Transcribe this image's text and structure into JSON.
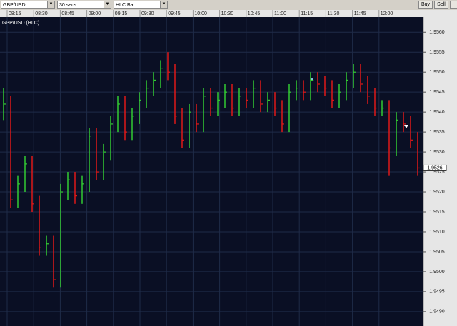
{
  "toolbar": {
    "symbol": "GBP/USD",
    "interval": "30 secs",
    "chart_type": "HLC Bar",
    "buttons": [
      "Buy",
      "Sell"
    ]
  },
  "chart_data": {
    "type": "hlc",
    "title": "GBP/USD (HLC)",
    "xtick_labels": [
      "08:15",
      "08:30",
      "08:45",
      "09:00",
      "09:15",
      "09:30",
      "09:45",
      "10:00",
      "10:30",
      "10:45",
      "11:00",
      "11:15",
      "11:30",
      "11:45",
      "12:00"
    ],
    "up_color": "#33cc33",
    "down_color": "#e01818",
    "grid": true,
    "ylim": [
      1.94864,
      1.95638
    ],
    "yticks": [
      {
        "value": 1.949,
        "label": "1.9490"
      },
      1.9495,
      {
        "value": 1.95,
        "label": "1.9500"
      },
      1.9505,
      {
        "value": 1.951,
        "label": "1.9510"
      },
      1.9515,
      {
        "value": 1.952,
        "label": "1.9520"
      },
      1.9525,
      {
        "value": 1.953,
        "label": "1.9530"
      },
      1.9535,
      {
        "value": 1.954,
        "label": "1.9540"
      },
      1.9545,
      {
        "value": 1.955,
        "label": "1.9550"
      },
      1.9555,
      {
        "value": 1.956,
        "label": "1.9560"
      }
    ],
    "last_price": 1.9526,
    "high": [
      1.9546,
      1.9544,
      1.9524,
      1.9529,
      1.9529,
      1.9519,
      1.9509,
      1.9509,
      1.9522,
      1.9525,
      1.9525,
      1.9524,
      1.9536,
      1.9536,
      1.9532,
      1.9539,
      1.9544,
      1.9544,
      1.9541,
      1.9545,
      1.9548,
      1.955,
      1.9553,
      1.9555,
      1.9552,
      1.9541,
      1.9542,
      1.9542,
      1.9546,
      1.9546,
      1.9545,
      1.9547,
      1.9547,
      1.9546,
      1.9546,
      1.9548,
      1.9548,
      1.9545,
      1.9545,
      1.9543,
      1.9547,
      1.9548,
      1.9548,
      1.955,
      1.955,
      1.9549,
      1.9548,
      1.9547,
      1.955,
      1.9552,
      1.9552,
      1.9549,
      1.9546,
      1.9543,
      1.9543,
      1.954,
      1.954,
      1.9539,
      1.9535
    ],
    "low": [
      1.9538,
      1.9516,
      1.9516,
      1.952,
      1.9515,
      1.9504,
      1.9504,
      1.9496,
      1.9496,
      1.9518,
      1.9517,
      1.9517,
      1.952,
      1.9523,
      1.9523,
      1.9528,
      1.9535,
      1.9533,
      1.9533,
      1.9537,
      1.9541,
      1.9544,
      1.9546,
      1.9548,
      1.9537,
      1.9531,
      1.9531,
      1.9535,
      1.9535,
      1.9539,
      1.9539,
      1.9541,
      1.9539,
      1.9539,
      1.9541,
      1.9541,
      1.954,
      1.954,
      1.9539,
      1.9535,
      1.9535,
      1.9543,
      1.9543,
      1.9543,
      1.9545,
      1.9544,
      1.9541,
      1.9541,
      1.9543,
      1.9546,
      1.9545,
      1.9542,
      1.9539,
      1.9539,
      1.9524,
      1.9529,
      1.9535,
      1.9531,
      1.9524
    ],
    "close": [
      1.9542,
      1.9518,
      1.9522,
      1.9527,
      1.9517,
      1.9506,
      1.9507,
      1.9498,
      1.952,
      1.9523,
      1.9519,
      1.9522,
      1.9534,
      1.9525,
      1.953,
      1.9537,
      1.9542,
      1.9535,
      1.9539,
      1.9543,
      1.9546,
      1.9548,
      1.9551,
      1.955,
      1.9539,
      1.9533,
      1.954,
      1.9537,
      1.9544,
      1.9541,
      1.9543,
      1.9545,
      1.9541,
      1.9544,
      1.9543,
      1.9546,
      1.9542,
      1.9543,
      1.9541,
      1.9537,
      1.9545,
      1.9546,
      1.9545,
      1.9548,
      1.9547,
      1.9546,
      1.9543,
      1.9545,
      1.9548,
      1.955,
      1.9547,
      1.9544,
      1.9541,
      1.9541,
      1.9531,
      1.9538,
      1.9537,
      1.9533,
      1.9526
    ]
  }
}
